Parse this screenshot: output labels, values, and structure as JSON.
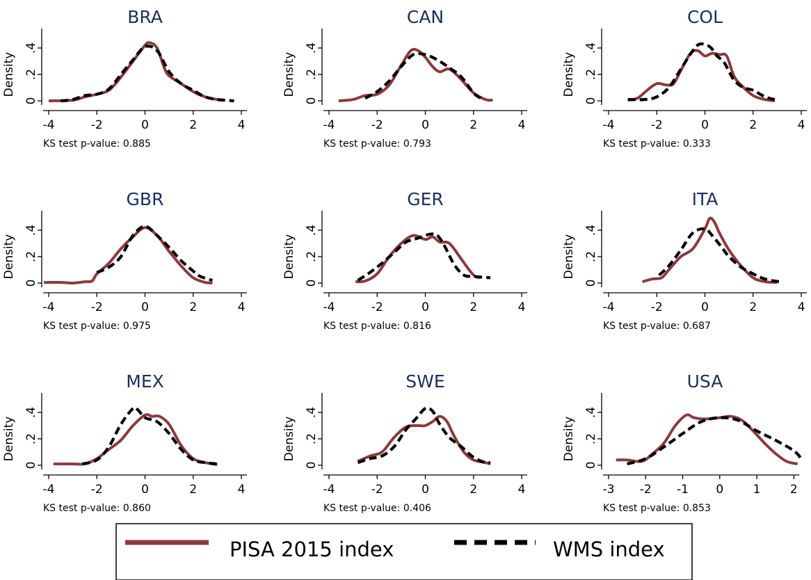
{
  "colors": {
    "pisa": "#8b3a3e",
    "wms": "#000000",
    "title": "#1a2f5a"
  },
  "legend": {
    "pisa_label": "PISA 2015 index",
    "wms_label": "WMS index"
  },
  "chart_data": [
    {
      "type": "line",
      "title": "BRA",
      "xlabel": "",
      "ylabel": "Density",
      "note": "KS test p-value: 0.885",
      "xticks": [
        -4,
        -2,
        0,
        2,
        4
      ],
      "xtick_labels": [
        "-4",
        "-2",
        "0",
        "2",
        "4"
      ],
      "yticks": [
        0,
        0.2,
        0.4
      ],
      "ytick_labels": [
        "0",
        ".2",
        ".4"
      ],
      "xlim": [
        -4,
        4
      ],
      "ylim": [
        0,
        0.4
      ],
      "series": [
        {
          "name": "PISA 2015 index",
          "style": "solid",
          "x": [
            -4.0,
            -3.0,
            -2.5,
            -2.0,
            -1.5,
            -1.0,
            -0.5,
            0.0,
            0.2,
            0.5,
            0.8,
            1.0,
            1.5,
            2.0,
            2.5,
            3.0,
            3.2
          ],
          "y": [
            0.0,
            0.005,
            0.03,
            0.05,
            0.08,
            0.18,
            0.3,
            0.42,
            0.44,
            0.4,
            0.25,
            0.19,
            0.13,
            0.07,
            0.03,
            0.01,
            0.005
          ]
        },
        {
          "name": "WMS index",
          "style": "dashed",
          "x": [
            -3.5,
            -3.0,
            -2.5,
            -2.0,
            -1.5,
            -1.0,
            -0.5,
            0.0,
            0.5,
            1.0,
            1.5,
            2.0,
            2.5,
            3.0,
            3.7
          ],
          "y": [
            0.0,
            0.01,
            0.04,
            0.05,
            0.09,
            0.2,
            0.31,
            0.41,
            0.38,
            0.22,
            0.13,
            0.08,
            0.03,
            0.01,
            0.0
          ]
        }
      ]
    },
    {
      "type": "line",
      "title": "CAN",
      "xlabel": "",
      "ylabel": "Density",
      "note": "KS test p-value: 0.793",
      "xticks": [
        -4,
        -2,
        0,
        2,
        4
      ],
      "xtick_labels": [
        "-4",
        "-2",
        "0",
        "2",
        "4"
      ],
      "yticks": [
        0,
        0.2,
        0.4
      ],
      "ytick_labels": [
        "0",
        ".2",
        ".4"
      ],
      "xlim": [
        -4,
        4
      ],
      "ylim": [
        0,
        0.4
      ],
      "series": [
        {
          "name": "PISA 2015 index",
          "style": "solid",
          "x": [
            -3.6,
            -3.0,
            -2.5,
            -2.0,
            -1.5,
            -1.0,
            -0.6,
            -0.3,
            0.0,
            0.3,
            0.6,
            1.0,
            1.5,
            2.0,
            2.5,
            2.8
          ],
          "y": [
            0.0,
            0.01,
            0.04,
            0.05,
            0.12,
            0.27,
            0.38,
            0.38,
            0.33,
            0.26,
            0.22,
            0.24,
            0.16,
            0.06,
            0.01,
            0.005
          ]
        },
        {
          "name": "WMS index",
          "style": "dashed",
          "x": [
            -2.5,
            -2.0,
            -1.5,
            -1.0,
            -0.5,
            0.0,
            0.5,
            1.0,
            1.5,
            2.0,
            2.3
          ],
          "y": [
            0.02,
            0.07,
            0.15,
            0.26,
            0.35,
            0.35,
            0.31,
            0.25,
            0.18,
            0.06,
            0.02
          ]
        }
      ]
    },
    {
      "type": "line",
      "title": "COL",
      "xlabel": "",
      "ylabel": "Density",
      "note": "KS test p-value: 0.333",
      "xticks": [
        -4,
        -2,
        0,
        2,
        4
      ],
      "xtick_labels": [
        "-4",
        "-2",
        "0",
        "2",
        "4"
      ],
      "yticks": [
        0,
        0.2,
        0.4
      ],
      "ytick_labels": [
        "0",
        ".2",
        ".4"
      ],
      "xlim": [
        -4,
        4
      ],
      "ylim": [
        0,
        0.4
      ],
      "series": [
        {
          "name": "PISA 2015 index",
          "style": "solid",
          "x": [
            -3.2,
            -2.8,
            -2.4,
            -2.0,
            -1.6,
            -1.3,
            -1.0,
            -0.6,
            -0.3,
            0.0,
            0.3,
            0.6,
            0.9,
            1.2,
            1.5,
            2.0,
            2.5,
            2.9
          ],
          "y": [
            0.005,
            0.02,
            0.08,
            0.13,
            0.12,
            0.13,
            0.23,
            0.36,
            0.38,
            0.34,
            0.36,
            0.35,
            0.34,
            0.19,
            0.12,
            0.04,
            0.01,
            0.0
          ]
        },
        {
          "name": "WMS index",
          "style": "dashed",
          "x": [
            -3.2,
            -2.5,
            -2.0,
            -1.5,
            -1.0,
            -0.5,
            -0.2,
            0.2,
            0.5,
            0.8,
            1.2,
            1.6,
            2.0,
            2.5,
            2.9
          ],
          "y": [
            0.01,
            0.01,
            0.03,
            0.1,
            0.24,
            0.38,
            0.43,
            0.41,
            0.34,
            0.29,
            0.16,
            0.1,
            0.08,
            0.03,
            0.01
          ]
        }
      ]
    },
    {
      "type": "line",
      "title": "GBR",
      "xlabel": "",
      "ylabel": "Density",
      "note": "KS test p-value: 0.975",
      "xticks": [
        -4,
        -2,
        0,
        2,
        4
      ],
      "xtick_labels": [
        "-4",
        "-2",
        "0",
        "2",
        "4"
      ],
      "yticks": [
        0,
        0.2,
        0.4
      ],
      "ytick_labels": [
        "0",
        ".2",
        ".4"
      ],
      "xlim": [
        -4,
        4
      ],
      "ylim": [
        0,
        0.4
      ],
      "series": [
        {
          "name": "PISA 2015 index",
          "style": "solid",
          "x": [
            -4.2,
            -3.5,
            -3.0,
            -2.5,
            -2.2,
            -2.0,
            -1.5,
            -1.0,
            -0.5,
            0.0,
            0.5,
            1.0,
            1.5,
            2.0,
            2.5,
            2.8
          ],
          "y": [
            0.005,
            0.005,
            0.0,
            0.01,
            0.015,
            0.07,
            0.15,
            0.26,
            0.35,
            0.42,
            0.36,
            0.24,
            0.13,
            0.04,
            0.005,
            0.0
          ]
        },
        {
          "name": "WMS index",
          "style": "dashed",
          "x": [
            -2.0,
            -1.5,
            -1.0,
            -0.5,
            0.0,
            0.5,
            1.0,
            1.5,
            2.0,
            2.3,
            2.8
          ],
          "y": [
            0.08,
            0.12,
            0.2,
            0.36,
            0.43,
            0.36,
            0.27,
            0.17,
            0.09,
            0.05,
            0.02
          ]
        }
      ]
    },
    {
      "type": "line",
      "title": "GER",
      "xlabel": "",
      "ylabel": "Density",
      "note": "KS test p-value: 0.816",
      "xticks": [
        -4,
        -2,
        0,
        2,
        4
      ],
      "xtick_labels": [
        "-4",
        "-2",
        "0",
        "2",
        "4"
      ],
      "yticks": [
        0,
        0.2,
        0.4
      ],
      "ytick_labels": [
        "0",
        ".2",
        ".4"
      ],
      "xlim": [
        -4,
        4
      ],
      "ylim": [
        0,
        0.4
      ],
      "series": [
        {
          "name": "PISA 2015 index",
          "style": "solid",
          "x": [
            -2.9,
            -2.5,
            -2.0,
            -1.5,
            -1.0,
            -0.5,
            0.0,
            0.3,
            0.6,
            1.0,
            1.5,
            2.0,
            2.3
          ],
          "y": [
            0.01,
            0.015,
            0.07,
            0.2,
            0.3,
            0.36,
            0.33,
            0.35,
            0.31,
            0.3,
            0.18,
            0.06,
            0.04
          ]
        },
        {
          "name": "WMS index",
          "style": "dashed",
          "x": [
            -2.8,
            -2.3,
            -1.8,
            -1.3,
            -0.8,
            -0.3,
            0.2,
            0.5,
            0.8,
            1.2,
            1.6,
            2.0,
            2.7
          ],
          "y": [
            0.02,
            0.08,
            0.15,
            0.23,
            0.31,
            0.34,
            0.37,
            0.36,
            0.28,
            0.14,
            0.06,
            0.05,
            0.04
          ]
        }
      ]
    },
    {
      "type": "line",
      "title": "ITA",
      "xlabel": "",
      "ylabel": "Density",
      "note": "KS test p-value: 0.687",
      "xticks": [
        -4,
        -2,
        0,
        2,
        4
      ],
      "xtick_labels": [
        "-4",
        "-2",
        "0",
        "2",
        "4"
      ],
      "yticks": [
        0,
        0.2,
        0.4
      ],
      "ytick_labels": [
        "0",
        ".2",
        ".4"
      ],
      "xlim": [
        -4,
        4
      ],
      "ylim": [
        0,
        0.4
      ],
      "series": [
        {
          "name": "PISA 2015 index",
          "style": "solid",
          "x": [
            -2.6,
            -2.2,
            -1.8,
            -1.5,
            -1.0,
            -0.5,
            0.0,
            0.2,
            0.4,
            0.6,
            1.0,
            1.5,
            2.0,
            2.5,
            3.0
          ],
          "y": [
            0.01,
            0.03,
            0.04,
            0.1,
            0.2,
            0.26,
            0.41,
            0.49,
            0.46,
            0.38,
            0.25,
            0.13,
            0.04,
            0.01,
            0.005
          ]
        },
        {
          "name": "WMS index",
          "style": "dashed",
          "x": [
            -1.9,
            -1.5,
            -1.0,
            -0.5,
            0.0,
            0.3,
            0.7,
            1.0,
            1.5,
            2.0,
            2.5,
            3.1
          ],
          "y": [
            0.06,
            0.13,
            0.25,
            0.38,
            0.41,
            0.36,
            0.27,
            0.2,
            0.12,
            0.07,
            0.03,
            0.01
          ]
        }
      ]
    },
    {
      "type": "line",
      "title": "MEX",
      "xlabel": "",
      "ylabel": "Density",
      "note": "KS test p-value: 0.860",
      "xticks": [
        -4,
        -2,
        0,
        2,
        4
      ],
      "xtick_labels": [
        "-4",
        "-2",
        "0",
        "2",
        "4"
      ],
      "yticks": [
        0,
        0.2,
        0.4
      ],
      "ytick_labels": [
        "0",
        ".2",
        ".4"
      ],
      "xlim": [
        -4,
        4
      ],
      "ylim": [
        0,
        0.4
      ],
      "series": [
        {
          "name": "PISA 2015 index",
          "style": "solid",
          "x": [
            -3.8,
            -3.0,
            -2.5,
            -2.0,
            -1.5,
            -1.0,
            -0.5,
            0.0,
            0.3,
            0.6,
            1.0,
            1.5,
            2.0,
            2.5,
            3.0
          ],
          "y": [
            0.01,
            0.01,
            0.01,
            0.05,
            0.12,
            0.19,
            0.3,
            0.38,
            0.37,
            0.37,
            0.31,
            0.15,
            0.05,
            0.02,
            0.005
          ]
        },
        {
          "name": "WMS index",
          "style": "dashed",
          "x": [
            -2.6,
            -2.0,
            -1.5,
            -1.0,
            -0.5,
            -0.3,
            0.0,
            0.5,
            1.0,
            1.5,
            2.0,
            2.5,
            3.0
          ],
          "y": [
            0.01,
            0.04,
            0.14,
            0.31,
            0.43,
            0.42,
            0.36,
            0.33,
            0.24,
            0.12,
            0.04,
            0.02,
            0.01
          ]
        }
      ]
    },
    {
      "type": "line",
      "title": "SWE",
      "xlabel": "",
      "ylabel": "Density",
      "note": "KS test p-value: 0.406",
      "xticks": [
        -4,
        -2,
        0,
        2,
        4
      ],
      "xtick_labels": [
        "-4",
        "-2",
        "0",
        "2",
        "4"
      ],
      "yticks": [
        0,
        0.2,
        0.4
      ],
      "ytick_labels": [
        "0",
        ".2",
        ".4"
      ],
      "xlim": [
        -4,
        4
      ],
      "ylim": [
        0,
        0.4
      ],
      "series": [
        {
          "name": "PISA 2015 index",
          "style": "solid",
          "x": [
            -2.8,
            -2.3,
            -1.8,
            -1.3,
            -0.8,
            -0.3,
            0.0,
            0.3,
            0.6,
            0.9,
            1.2,
            1.6,
            2.0,
            2.5,
            2.7
          ],
          "y": [
            0.03,
            0.07,
            0.1,
            0.21,
            0.29,
            0.3,
            0.3,
            0.33,
            0.37,
            0.33,
            0.22,
            0.1,
            0.04,
            0.02,
            0.01
          ]
        },
        {
          "name": "WMS index",
          "style": "dashed",
          "x": [
            -2.8,
            -2.3,
            -1.8,
            -1.3,
            -0.8,
            -0.4,
            0.0,
            0.3,
            0.6,
            1.0,
            1.5,
            2.0,
            2.5,
            2.7
          ],
          "y": [
            0.02,
            0.05,
            0.07,
            0.14,
            0.27,
            0.35,
            0.43,
            0.41,
            0.31,
            0.21,
            0.14,
            0.06,
            0.02,
            0.02
          ]
        }
      ]
    },
    {
      "type": "line",
      "title": "USA",
      "xlabel": "",
      "ylabel": "Density",
      "note": "KS test p-value: 0.853",
      "xticks": [
        -3,
        -2,
        -1,
        0,
        1,
        2
      ],
      "xtick_labels": [
        "-3",
        "-2",
        "-1",
        "0",
        "1",
        "2"
      ],
      "yticks": [
        0,
        0.2,
        0.4
      ],
      "ytick_labels": [
        "0",
        ".2",
        ".4"
      ],
      "xlim": [
        -3,
        2.2
      ],
      "ylim": [
        0,
        0.4
      ],
      "series": [
        {
          "name": "PISA 2015 index",
          "style": "solid",
          "x": [
            -2.8,
            -2.5,
            -2.1,
            -1.8,
            -1.5,
            -1.2,
            -0.9,
            -0.7,
            -0.4,
            0.0,
            0.3,
            0.6,
            0.9,
            1.2,
            1.5,
            1.8,
            2.1
          ],
          "y": [
            0.04,
            0.04,
            0.03,
            0.09,
            0.17,
            0.3,
            0.38,
            0.36,
            0.35,
            0.36,
            0.37,
            0.34,
            0.26,
            0.17,
            0.09,
            0.03,
            0.01
          ]
        },
        {
          "name": "WMS index",
          "style": "dashed",
          "x": [
            -2.5,
            -2.0,
            -1.5,
            -1.0,
            -0.5,
            0.0,
            0.5,
            1.0,
            1.5,
            2.0,
            2.2
          ],
          "y": [
            0.01,
            0.05,
            0.14,
            0.24,
            0.33,
            0.36,
            0.34,
            0.26,
            0.19,
            0.11,
            0.05
          ]
        }
      ]
    }
  ]
}
